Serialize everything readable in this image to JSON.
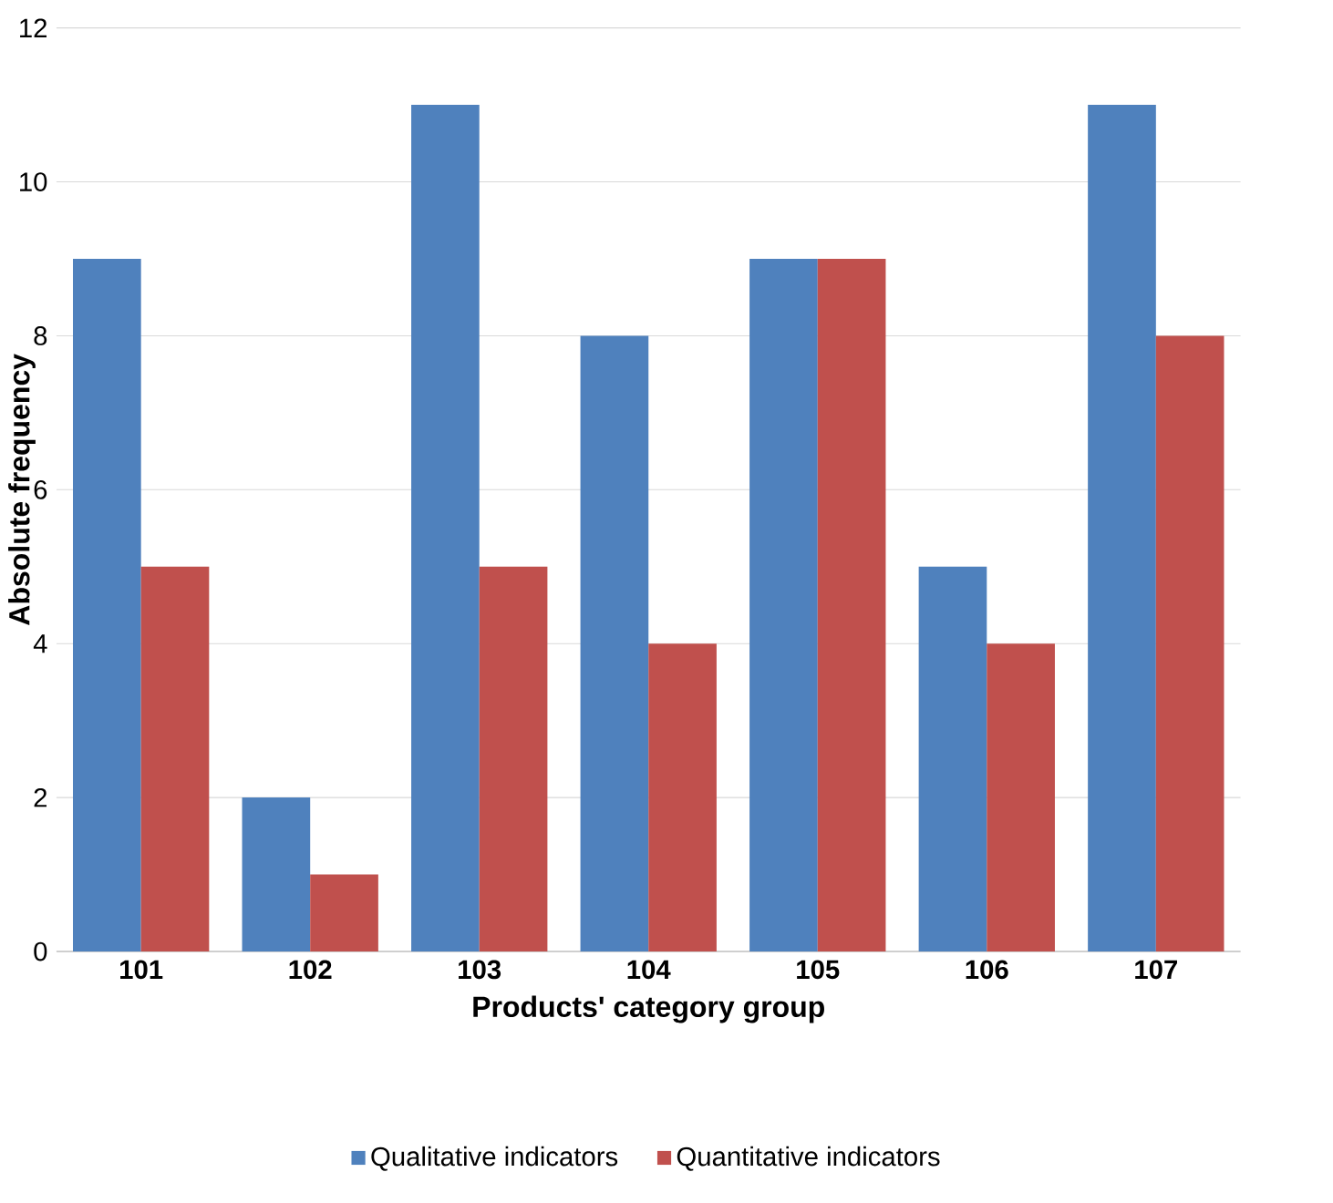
{
  "chart_data": {
    "type": "bar",
    "xlabel": "Products' category group",
    "ylabel": "Absolute frequency",
    "categories": [
      "101",
      "102",
      "103",
      "104",
      "105",
      "106",
      "107"
    ],
    "series": [
      {
        "name": "Qualitative indicators",
        "color": "#4f81bd",
        "values": [
          9,
          2,
          11,
          8,
          9,
          5,
          11
        ]
      },
      {
        "name": "Quantitative indicators",
        "color": "#c0504d",
        "values": [
          5,
          1,
          5,
          4,
          9,
          4,
          8
        ]
      }
    ],
    "ylim": [
      0,
      12
    ],
    "yticks": [
      0,
      2,
      4,
      6,
      8,
      10,
      12
    ],
    "grid": "y",
    "legend": "bottom"
  }
}
